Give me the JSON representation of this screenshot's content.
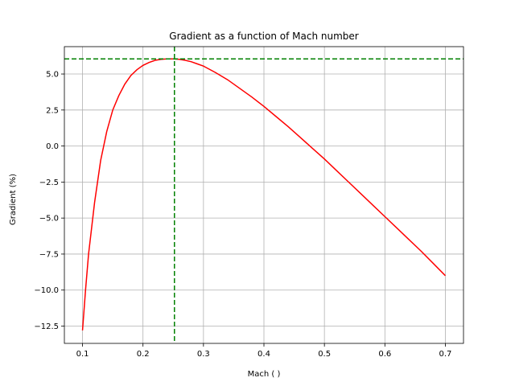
{
  "chart_data": {
    "type": "line",
    "title": "Gradient as a function of Mach number",
    "xlabel": "Mach ( )",
    "ylabel": "Gradient (%)",
    "xlim": [
      0.07,
      0.73
    ],
    "ylim": [
      -13.7,
      6.9
    ],
    "grid": true,
    "x_ticks": [
      0.1,
      0.2,
      0.3,
      0.4,
      0.5,
      0.6,
      0.7
    ],
    "x_tick_labels": [
      "0.1",
      "0.2",
      "0.3",
      "0.4",
      "0.5",
      "0.6",
      "0.7"
    ],
    "y_ticks": [
      -12.5,
      -10.0,
      -7.5,
      -5.0,
      -2.5,
      0.0,
      2.5,
      5.0
    ],
    "y_tick_labels": [
      "−12.5",
      "−10.0",
      "−7.5",
      "−5.0",
      "−2.5",
      "0.0",
      "2.5",
      "5.0"
    ],
    "series": [
      {
        "color": "#ff0000",
        "style": "solid",
        "x": [
          0.1,
          0.105,
          0.11,
          0.12,
          0.13,
          0.14,
          0.15,
          0.16,
          0.17,
          0.18,
          0.19,
          0.2,
          0.21,
          0.22,
          0.23,
          0.24,
          0.25,
          0.26,
          0.27,
          0.28,
          0.29,
          0.3,
          0.32,
          0.34,
          0.36,
          0.38,
          0.4,
          0.42,
          0.44,
          0.46,
          0.48,
          0.5,
          0.52,
          0.54,
          0.56,
          0.58,
          0.6,
          0.62,
          0.64,
          0.66,
          0.68,
          0.7
        ],
        "y": [
          -12.8,
          -10.0,
          -7.5,
          -3.9,
          -1.0,
          1.0,
          2.5,
          3.5,
          4.3,
          4.9,
          5.3,
          5.6,
          5.8,
          5.95,
          6.02,
          6.05,
          6.05,
          6.02,
          5.95,
          5.85,
          5.7,
          5.55,
          5.1,
          4.6,
          4.0,
          3.4,
          2.75,
          2.05,
          1.35,
          0.6,
          -0.15,
          -0.9,
          -1.7,
          -2.5,
          -3.3,
          -4.1,
          -4.9,
          -5.7,
          -6.5,
          -7.3,
          -8.15,
          -9.0
        ]
      }
    ],
    "reference_lines": [
      {
        "orientation": "horizontal",
        "value": 6.05,
        "color": "#008000",
        "style": "dashed"
      },
      {
        "orientation": "vertical",
        "value": 0.252,
        "color": "#008000",
        "style": "dashed"
      }
    ]
  }
}
